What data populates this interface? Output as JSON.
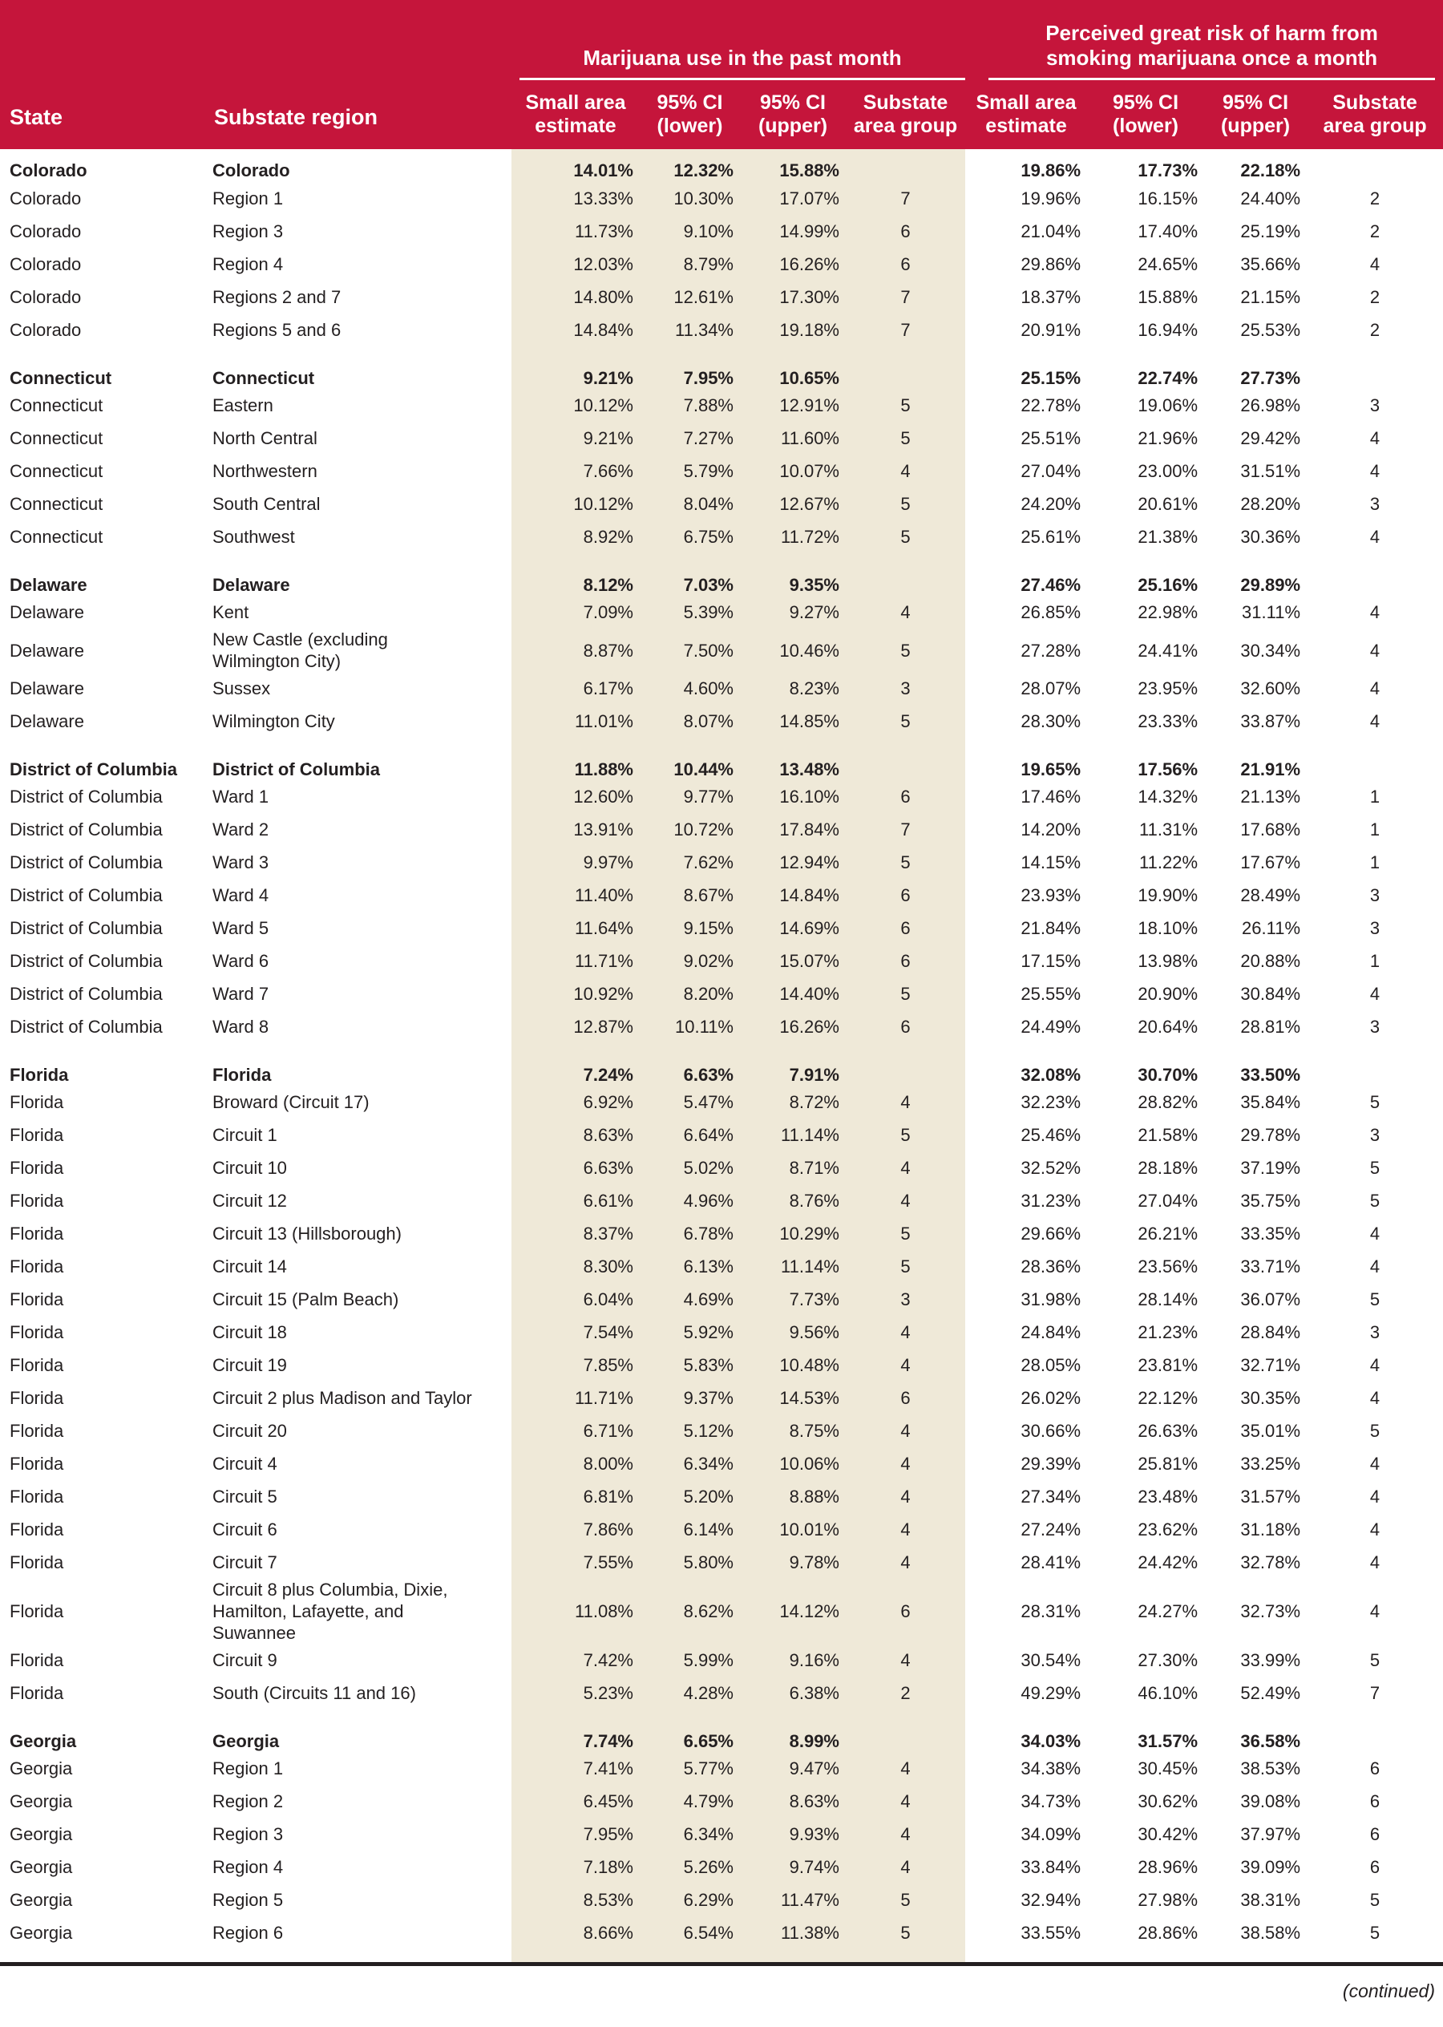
{
  "colors": {
    "header_red": "#C5153B",
    "band_beige": "#EFE9D8",
    "text": "#231F20",
    "header_text": "#FFFFFF"
  },
  "table": {
    "head": {
      "state": "State",
      "region": "Substate region",
      "group1": "Marijuana use in the past month",
      "group2": "Perceived great risk of harm from\nsmoking marijuana once a month",
      "sub": [
        "Small area\nestimate",
        "95% CI\n(lower)",
        "95% CI\n(upper)",
        "Substate\narea group"
      ]
    },
    "rows": [
      {
        "state": "Colorado",
        "region": "Colorado",
        "bold": true,
        "mu": [
          "14.01%",
          "12.32%",
          "15.88%",
          ""
        ],
        "pr": [
          "19.86%",
          "17.73%",
          "22.18%",
          ""
        ]
      },
      {
        "state": "Colorado",
        "region": "Region 1",
        "bold": false,
        "mu": [
          "13.33%",
          "10.30%",
          "17.07%",
          "7"
        ],
        "pr": [
          "19.96%",
          "16.15%",
          "24.40%",
          "2"
        ]
      },
      {
        "state": "Colorado",
        "region": "Region 3",
        "bold": false,
        "mu": [
          "11.73%",
          "9.10%",
          "14.99%",
          "6"
        ],
        "pr": [
          "21.04%",
          "17.40%",
          "25.19%",
          "2"
        ]
      },
      {
        "state": "Colorado",
        "region": "Region 4",
        "bold": false,
        "mu": [
          "12.03%",
          "8.79%",
          "16.26%",
          "6"
        ],
        "pr": [
          "29.86%",
          "24.65%",
          "35.66%",
          "4"
        ]
      },
      {
        "state": "Colorado",
        "region": "Regions 2 and 7",
        "bold": false,
        "mu": [
          "14.80%",
          "12.61%",
          "17.30%",
          "7"
        ],
        "pr": [
          "18.37%",
          "15.88%",
          "21.15%",
          "2"
        ]
      },
      {
        "state": "Colorado",
        "region": "Regions 5 and 6",
        "bold": false,
        "mu": [
          "14.84%",
          "11.34%",
          "19.18%",
          "7"
        ],
        "pr": [
          "20.91%",
          "16.94%",
          "25.53%",
          "2"
        ]
      },
      {
        "state": "Connecticut",
        "region": "Connecticut",
        "bold": true,
        "mu": [
          "9.21%",
          "7.95%",
          "10.65%",
          ""
        ],
        "pr": [
          "25.15%",
          "22.74%",
          "27.73%",
          ""
        ]
      },
      {
        "state": "Connecticut",
        "region": "Eastern",
        "bold": false,
        "mu": [
          "10.12%",
          "7.88%",
          "12.91%",
          "5"
        ],
        "pr": [
          "22.78%",
          "19.06%",
          "26.98%",
          "3"
        ]
      },
      {
        "state": "Connecticut",
        "region": "North Central",
        "bold": false,
        "mu": [
          "9.21%",
          "7.27%",
          "11.60%",
          "5"
        ],
        "pr": [
          "25.51%",
          "21.96%",
          "29.42%",
          "4"
        ]
      },
      {
        "state": "Connecticut",
        "region": "Northwestern",
        "bold": false,
        "mu": [
          "7.66%",
          "5.79%",
          "10.07%",
          "4"
        ],
        "pr": [
          "27.04%",
          "23.00%",
          "31.51%",
          "4"
        ]
      },
      {
        "state": "Connecticut",
        "region": "South Central",
        "bold": false,
        "mu": [
          "10.12%",
          "8.04%",
          "12.67%",
          "5"
        ],
        "pr": [
          "24.20%",
          "20.61%",
          "28.20%",
          "3"
        ]
      },
      {
        "state": "Connecticut",
        "region": "Southwest",
        "bold": false,
        "mu": [
          "8.92%",
          "6.75%",
          "11.72%",
          "5"
        ],
        "pr": [
          "25.61%",
          "21.38%",
          "30.36%",
          "4"
        ]
      },
      {
        "state": "Delaware",
        "region": "Delaware",
        "bold": true,
        "mu": [
          "8.12%",
          "7.03%",
          "9.35%",
          ""
        ],
        "pr": [
          "27.46%",
          "25.16%",
          "29.89%",
          ""
        ]
      },
      {
        "state": "Delaware",
        "region": "Kent",
        "bold": false,
        "mu": [
          "7.09%",
          "5.39%",
          "9.27%",
          "4"
        ],
        "pr": [
          "26.85%",
          "22.98%",
          "31.11%",
          "4"
        ]
      },
      {
        "state": "Delaware",
        "region": "New Castle (excluding\nWilmington City)",
        "bold": false,
        "mu": [
          "8.87%",
          "7.50%",
          "10.46%",
          "5"
        ],
        "pr": [
          "27.28%",
          "24.41%",
          "30.34%",
          "4"
        ]
      },
      {
        "state": "Delaware",
        "region": "Sussex",
        "bold": false,
        "mu": [
          "6.17%",
          "4.60%",
          "8.23%",
          "3"
        ],
        "pr": [
          "28.07%",
          "23.95%",
          "32.60%",
          "4"
        ]
      },
      {
        "state": "Delaware",
        "region": "Wilmington City",
        "bold": false,
        "mu": [
          "11.01%",
          "8.07%",
          "14.85%",
          "5"
        ],
        "pr": [
          "28.30%",
          "23.33%",
          "33.87%",
          "4"
        ]
      },
      {
        "state": "District of Columbia",
        "region": "District of Columbia",
        "bold": true,
        "mu": [
          "11.88%",
          "10.44%",
          "13.48%",
          ""
        ],
        "pr": [
          "19.65%",
          "17.56%",
          "21.91%",
          ""
        ]
      },
      {
        "state": "District of Columbia",
        "region": "Ward 1",
        "bold": false,
        "mu": [
          "12.60%",
          "9.77%",
          "16.10%",
          "6"
        ],
        "pr": [
          "17.46%",
          "14.32%",
          "21.13%",
          "1"
        ]
      },
      {
        "state": "District of Columbia",
        "region": "Ward 2",
        "bold": false,
        "mu": [
          "13.91%",
          "10.72%",
          "17.84%",
          "7"
        ],
        "pr": [
          "14.20%",
          "11.31%",
          "17.68%",
          "1"
        ]
      },
      {
        "state": "District of Columbia",
        "region": "Ward 3",
        "bold": false,
        "mu": [
          "9.97%",
          "7.62%",
          "12.94%",
          "5"
        ],
        "pr": [
          "14.15%",
          "11.22%",
          "17.67%",
          "1"
        ]
      },
      {
        "state": "District of Columbia",
        "region": "Ward 4",
        "bold": false,
        "mu": [
          "11.40%",
          "8.67%",
          "14.84%",
          "6"
        ],
        "pr": [
          "23.93%",
          "19.90%",
          "28.49%",
          "3"
        ]
      },
      {
        "state": "District of Columbia",
        "region": "Ward 5",
        "bold": false,
        "mu": [
          "11.64%",
          "9.15%",
          "14.69%",
          "6"
        ],
        "pr": [
          "21.84%",
          "18.10%",
          "26.11%",
          "3"
        ]
      },
      {
        "state": "District of Columbia",
        "region": "Ward 6",
        "bold": false,
        "mu": [
          "11.71%",
          "9.02%",
          "15.07%",
          "6"
        ],
        "pr": [
          "17.15%",
          "13.98%",
          "20.88%",
          "1"
        ]
      },
      {
        "state": "District of Columbia",
        "region": "Ward 7",
        "bold": false,
        "mu": [
          "10.92%",
          "8.20%",
          "14.40%",
          "5"
        ],
        "pr": [
          "25.55%",
          "20.90%",
          "30.84%",
          "4"
        ]
      },
      {
        "state": "District of Columbia",
        "region": "Ward 8",
        "bold": false,
        "mu": [
          "12.87%",
          "10.11%",
          "16.26%",
          "6"
        ],
        "pr": [
          "24.49%",
          "20.64%",
          "28.81%",
          "3"
        ]
      },
      {
        "state": "Florida",
        "region": "Florida",
        "bold": true,
        "mu": [
          "7.24%",
          "6.63%",
          "7.91%",
          ""
        ],
        "pr": [
          "32.08%",
          "30.70%",
          "33.50%",
          ""
        ]
      },
      {
        "state": "Florida",
        "region": "Broward (Circuit 17)",
        "bold": false,
        "mu": [
          "6.92%",
          "5.47%",
          "8.72%",
          "4"
        ],
        "pr": [
          "32.23%",
          "28.82%",
          "35.84%",
          "5"
        ]
      },
      {
        "state": "Florida",
        "region": "Circuit 1",
        "bold": false,
        "mu": [
          "8.63%",
          "6.64%",
          "11.14%",
          "5"
        ],
        "pr": [
          "25.46%",
          "21.58%",
          "29.78%",
          "3"
        ]
      },
      {
        "state": "Florida",
        "region": "Circuit 10",
        "bold": false,
        "mu": [
          "6.63%",
          "5.02%",
          "8.71%",
          "4"
        ],
        "pr": [
          "32.52%",
          "28.18%",
          "37.19%",
          "5"
        ]
      },
      {
        "state": "Florida",
        "region": "Circuit 12",
        "bold": false,
        "mu": [
          "6.61%",
          "4.96%",
          "8.76%",
          "4"
        ],
        "pr": [
          "31.23%",
          "27.04%",
          "35.75%",
          "5"
        ]
      },
      {
        "state": "Florida",
        "region": "Circuit 13 (Hillsborough)",
        "bold": false,
        "mu": [
          "8.37%",
          "6.78%",
          "10.29%",
          "5"
        ],
        "pr": [
          "29.66%",
          "26.21%",
          "33.35%",
          "4"
        ]
      },
      {
        "state": "Florida",
        "region": "Circuit 14",
        "bold": false,
        "mu": [
          "8.30%",
          "6.13%",
          "11.14%",
          "5"
        ],
        "pr": [
          "28.36%",
          "23.56%",
          "33.71%",
          "4"
        ]
      },
      {
        "state": "Florida",
        "region": "Circuit 15 (Palm Beach)",
        "bold": false,
        "mu": [
          "6.04%",
          "4.69%",
          "7.73%",
          "3"
        ],
        "pr": [
          "31.98%",
          "28.14%",
          "36.07%",
          "5"
        ]
      },
      {
        "state": "Florida",
        "region": "Circuit 18",
        "bold": false,
        "mu": [
          "7.54%",
          "5.92%",
          "9.56%",
          "4"
        ],
        "pr": [
          "24.84%",
          "21.23%",
          "28.84%",
          "3"
        ]
      },
      {
        "state": "Florida",
        "region": "Circuit 19",
        "bold": false,
        "mu": [
          "7.85%",
          "5.83%",
          "10.48%",
          "4"
        ],
        "pr": [
          "28.05%",
          "23.81%",
          "32.71%",
          "4"
        ]
      },
      {
        "state": "Florida",
        "region": "Circuit 2 plus Madison and Taylor",
        "bold": false,
        "mu": [
          "11.71%",
          "9.37%",
          "14.53%",
          "6"
        ],
        "pr": [
          "26.02%",
          "22.12%",
          "30.35%",
          "4"
        ]
      },
      {
        "state": "Florida",
        "region": "Circuit 20",
        "bold": false,
        "mu": [
          "6.71%",
          "5.12%",
          "8.75%",
          "4"
        ],
        "pr": [
          "30.66%",
          "26.63%",
          "35.01%",
          "5"
        ]
      },
      {
        "state": "Florida",
        "region": "Circuit 4",
        "bold": false,
        "mu": [
          "8.00%",
          "6.34%",
          "10.06%",
          "4"
        ],
        "pr": [
          "29.39%",
          "25.81%",
          "33.25%",
          "4"
        ]
      },
      {
        "state": "Florida",
        "region": "Circuit 5",
        "bold": false,
        "mu": [
          "6.81%",
          "5.20%",
          "8.88%",
          "4"
        ],
        "pr": [
          "27.34%",
          "23.48%",
          "31.57%",
          "4"
        ]
      },
      {
        "state": "Florida",
        "region": "Circuit 6",
        "bold": false,
        "mu": [
          "7.86%",
          "6.14%",
          "10.01%",
          "4"
        ],
        "pr": [
          "27.24%",
          "23.62%",
          "31.18%",
          "4"
        ]
      },
      {
        "state": "Florida",
        "region": "Circuit 7",
        "bold": false,
        "mu": [
          "7.55%",
          "5.80%",
          "9.78%",
          "4"
        ],
        "pr": [
          "28.41%",
          "24.42%",
          "32.78%",
          "4"
        ]
      },
      {
        "state": "Florida",
        "region": "Circuit 8 plus Columbia, Dixie,\nHamilton, Lafayette, and\nSuwannee",
        "bold": false,
        "mu": [
          "11.08%",
          "8.62%",
          "14.12%",
          "6"
        ],
        "pr": [
          "28.31%",
          "24.27%",
          "32.73%",
          "4"
        ]
      },
      {
        "state": "Florida",
        "region": "Circuit 9",
        "bold": false,
        "mu": [
          "7.42%",
          "5.99%",
          "9.16%",
          "4"
        ],
        "pr": [
          "30.54%",
          "27.30%",
          "33.99%",
          "5"
        ]
      },
      {
        "state": "Florida",
        "region": "South (Circuits 11 and 16)",
        "bold": false,
        "mu": [
          "5.23%",
          "4.28%",
          "6.38%",
          "2"
        ],
        "pr": [
          "49.29%",
          "46.10%",
          "52.49%",
          "7"
        ]
      },
      {
        "state": "Georgia",
        "region": "Georgia",
        "bold": true,
        "mu": [
          "7.74%",
          "6.65%",
          "8.99%",
          ""
        ],
        "pr": [
          "34.03%",
          "31.57%",
          "36.58%",
          ""
        ]
      },
      {
        "state": "Georgia",
        "region": "Region 1",
        "bold": false,
        "mu": [
          "7.41%",
          "5.77%",
          "9.47%",
          "4"
        ],
        "pr": [
          "34.38%",
          "30.45%",
          "38.53%",
          "6"
        ]
      },
      {
        "state": "Georgia",
        "region": "Region 2",
        "bold": false,
        "mu": [
          "6.45%",
          "4.79%",
          "8.63%",
          "4"
        ],
        "pr": [
          "34.73%",
          "30.62%",
          "39.08%",
          "6"
        ]
      },
      {
        "state": "Georgia",
        "region": "Region 3",
        "bold": false,
        "mu": [
          "7.95%",
          "6.34%",
          "9.93%",
          "4"
        ],
        "pr": [
          "34.09%",
          "30.42%",
          "37.97%",
          "6"
        ]
      },
      {
        "state": "Georgia",
        "region": "Region 4",
        "bold": false,
        "mu": [
          "7.18%",
          "5.26%",
          "9.74%",
          "4"
        ],
        "pr": [
          "33.84%",
          "28.96%",
          "39.09%",
          "6"
        ]
      },
      {
        "state": "Georgia",
        "region": "Region 5",
        "bold": false,
        "mu": [
          "8.53%",
          "6.29%",
          "11.47%",
          "5"
        ],
        "pr": [
          "32.94%",
          "27.98%",
          "38.31%",
          "5"
        ]
      },
      {
        "state": "Georgia",
        "region": "Region 6",
        "bold": false,
        "mu": [
          "8.66%",
          "6.54%",
          "11.38%",
          "5"
        ],
        "pr": [
          "33.55%",
          "28.86%",
          "38.58%",
          "5"
        ]
      }
    ]
  },
  "footer": {
    "continued": "(continued)"
  }
}
